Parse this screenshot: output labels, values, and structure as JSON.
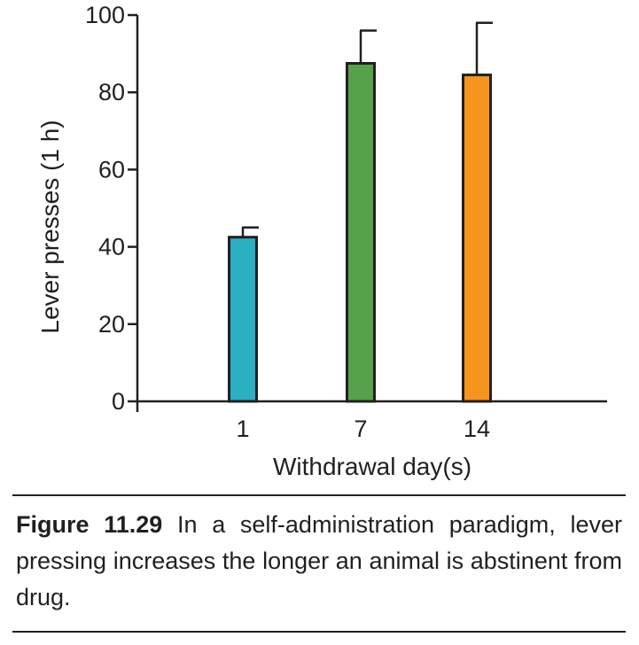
{
  "chart_data": {
    "type": "bar",
    "categories": [
      "1",
      "7",
      "14"
    ],
    "values": [
      42.5,
      87.5,
      84.5
    ],
    "errors": [
      2.5,
      8.5,
      13.5
    ],
    "colors": [
      "#2aafc3",
      "#55a24b",
      "#f7941d"
    ],
    "xlabel": "Withdrawal day(s)",
    "ylabel": "Lever presses (1 h)",
    "ylim": [
      0,
      100
    ],
    "yticks": [
      0,
      20,
      40,
      60,
      80,
      100
    ]
  },
  "caption": {
    "label": "Figure 11.29",
    "text": " In a self-administration paradigm, lever pressing increases the longer an animal is abstinent from drug."
  }
}
